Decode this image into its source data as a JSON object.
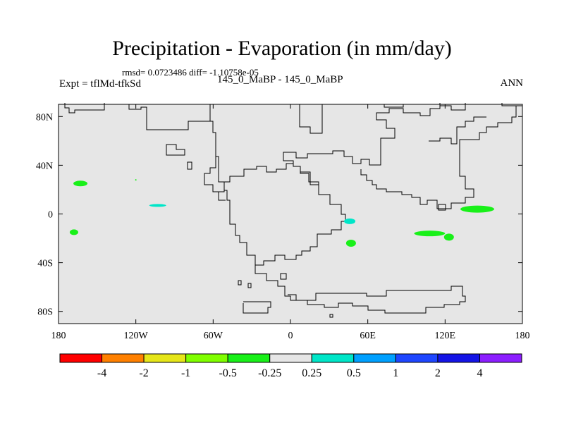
{
  "header": {
    "title": "Precipitation - Evaporation (in mm/day)",
    "subtitle": "rmsd= 0.0723486 diff= -1.10758e-05",
    "left_label": "Expt = tflMd-tfkSd",
    "center_label": "145_0_MaBP - 145_0_MaBP",
    "right_label": "ANN"
  },
  "chart_data": {
    "type": "heatmap",
    "title": "Precipitation - Evaporation (in mm/day)",
    "x_ticks": [
      "180",
      "120W",
      "60W",
      "0",
      "60E",
      "120E",
      "180"
    ],
    "y_ticks": [
      "80N",
      "40N",
      "0",
      "40S",
      "80S"
    ],
    "xlim": [
      -180,
      180
    ],
    "ylim": [
      -90,
      90
    ],
    "background_value_range": [
      -0.25,
      0.25
    ],
    "colorbar": {
      "labels": [
        "-4",
        "-2",
        "-1",
        "-0.5",
        "-0.25",
        "0.25",
        "0.5",
        "1",
        "2",
        "4"
      ],
      "colors": [
        "#ff0000",
        "#ff8000",
        "#e6e619",
        "#80ff00",
        "#19f019",
        "#e6e6e6",
        "#00e6c8",
        "#00a0ff",
        "#1e46ff",
        "#1414e6",
        "#8c1eff"
      ]
    },
    "anomalies": [
      {
        "lon": -163,
        "lat": 25,
        "value_bin": "-0.5 to -0.25",
        "color": "#19f019"
      },
      {
        "lon": -168,
        "lat": -15,
        "value_bin": "-0.5 to -0.25",
        "color": "#19f019"
      },
      {
        "lon": -120,
        "lat": 28,
        "value_bin": "-0.5 to -0.25",
        "color": "#19f019"
      },
      {
        "lon": -103,
        "lat": 7,
        "value_bin": "0.25 to 0.5",
        "color": "#00e6c8"
      },
      {
        "lon": 46,
        "lat": -6,
        "value_bin": "0.25 to 0.5",
        "color": "#00e6c8"
      },
      {
        "lon": 47,
        "lat": -24,
        "value_bin": "-0.5 to -0.25",
        "color": "#19f019"
      },
      {
        "lon": 108,
        "lat": -16,
        "value_bin": "-0.5 to -0.25",
        "color": "#19f019"
      },
      {
        "lon": 123,
        "lat": -19,
        "value_bin": "-0.5 to -0.25",
        "color": "#19f019"
      },
      {
        "lon": 145,
        "lat": 4,
        "value_bin": "-0.5 to -0.25",
        "color": "#19f019"
      }
    ],
    "colors": {
      "plot_background": "#e6e6e6",
      "coastline": "#000000"
    }
  }
}
